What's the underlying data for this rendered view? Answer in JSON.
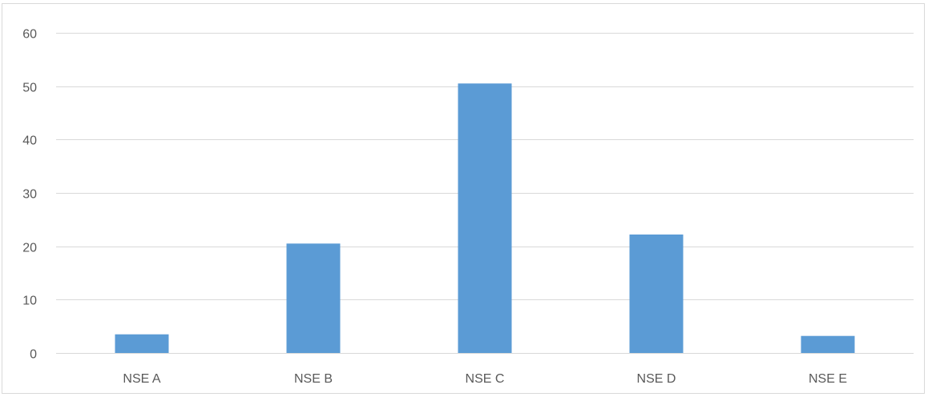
{
  "chart_data": {
    "type": "bar",
    "categories": [
      "NSE A",
      "NSE B",
      "NSE C",
      "NSE D",
      "NSE E"
    ],
    "values": [
      3.5,
      20.5,
      50.5,
      22.2,
      3.2
    ],
    "ylim": [
      0,
      60
    ],
    "yticks": [
      0,
      10,
      20,
      30,
      40,
      50,
      60
    ],
    "grid": true,
    "legend": "none",
    "bar_color": "#5b9bd5",
    "grid_color": "#d9d9d9",
    "text_color": "#595959"
  }
}
